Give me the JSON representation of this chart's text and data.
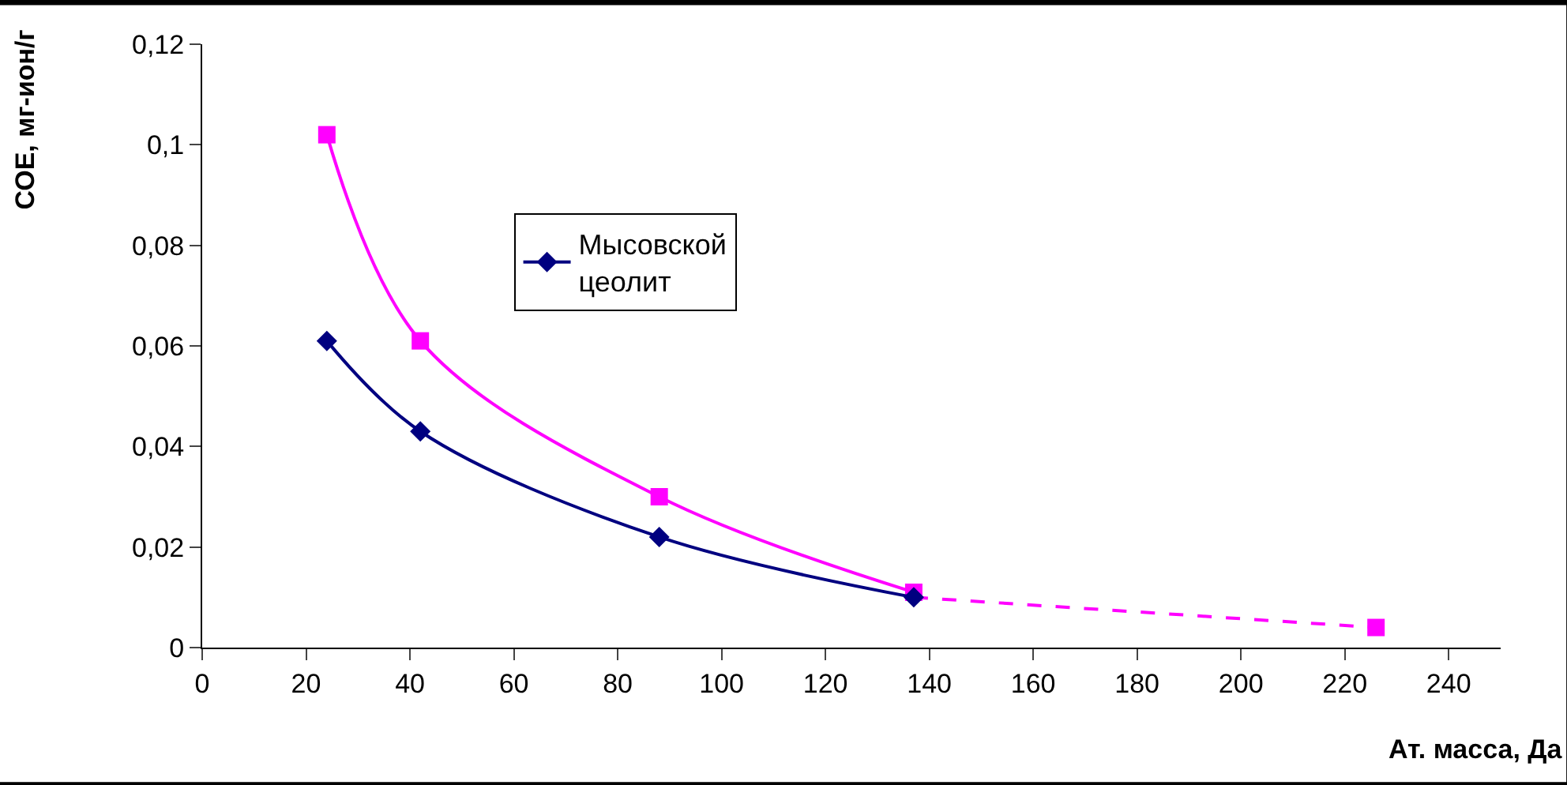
{
  "chart_data": {
    "type": "line",
    "xlabel": "Ат. масса, Да",
    "ylabel": "СОЕ, мг-ион/г",
    "xlim": [
      0,
      250
    ],
    "xticks": [
      0,
      20,
      40,
      60,
      80,
      100,
      120,
      140,
      160,
      180,
      200,
      220,
      240
    ],
    "ylim": [
      0,
      0.12
    ],
    "yticks": [
      {
        "value": 0,
        "label": "0"
      },
      {
        "value": 0.02,
        "label": "0,02"
      },
      {
        "value": 0.04,
        "label": "0,04"
      },
      {
        "value": 0.06,
        "label": "0,06"
      },
      {
        "value": 0.08,
        "label": "0,08"
      },
      {
        "value": 0.1,
        "label": "0,1"
      },
      {
        "value": 0.12,
        "label": "0,12"
      }
    ],
    "legend": "top",
    "series": [
      {
        "name": "Мысовской цеолит",
        "color": "#000080",
        "marker": "diamond",
        "x": [
          24,
          42,
          88,
          137
        ],
        "values": [
          0.061,
          0.043,
          0.022,
          0.01
        ]
      },
      {
        "color": "#ff00ff",
        "marker": "square",
        "x": [
          24,
          42,
          88,
          137
        ],
        "values": [
          0.102,
          0.061,
          0.03,
          0.011
        ]
      },
      {
        "color": "#ff00ff",
        "marker": "none",
        "line_style": "dashed",
        "x": [
          137,
          226
        ],
        "values": [
          0.01,
          0.004
        ]
      },
      {
        "type": "scatter",
        "color": "#ff00ff",
        "marker": "square",
        "x": [
          226
        ],
        "values": [
          0.004
        ]
      }
    ]
  }
}
